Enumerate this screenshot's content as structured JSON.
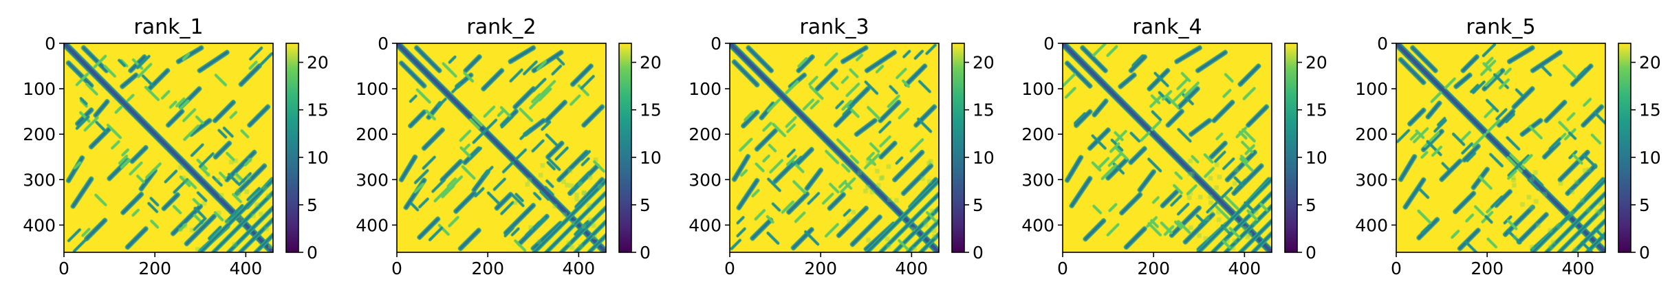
{
  "chart_data": [
    {
      "type": "heatmap",
      "title": "rank_1",
      "xlim": [
        0,
        460
      ],
      "ylim": [
        460,
        0
      ],
      "xticks": [
        0,
        200,
        400
      ],
      "yticks": [
        0,
        100,
        200,
        300,
        400
      ],
      "colorbar": {
        "vmin": 0,
        "vmax": 22,
        "ticks": [
          0,
          5,
          10,
          15,
          20
        ],
        "colormap": "viridis"
      },
      "seed": 11
    },
    {
      "type": "heatmap",
      "title": "rank_2",
      "xlim": [
        0,
        460
      ],
      "ylim": [
        460,
        0
      ],
      "xticks": [
        0,
        200,
        400
      ],
      "yticks": [
        0,
        100,
        200,
        300,
        400
      ],
      "colorbar": {
        "vmin": 0,
        "vmax": 22,
        "ticks": [
          0,
          5,
          10,
          15,
          20
        ],
        "colormap": "viridis"
      },
      "seed": 23
    },
    {
      "type": "heatmap",
      "title": "rank_3",
      "xlim": [
        0,
        460
      ],
      "ylim": [
        460,
        0
      ],
      "xticks": [
        0,
        200,
        400
      ],
      "yticks": [
        0,
        100,
        200,
        300,
        400
      ],
      "colorbar": {
        "vmin": 0,
        "vmax": 22,
        "ticks": [
          0,
          5,
          10,
          15,
          20
        ],
        "colormap": "viridis"
      },
      "seed": 37
    },
    {
      "type": "heatmap",
      "title": "rank_4",
      "xlim": [
        0,
        460
      ],
      "ylim": [
        460,
        0
      ],
      "xticks": [
        0,
        200,
        400
      ],
      "yticks": [
        0,
        100,
        200,
        300,
        400
      ],
      "colorbar": {
        "vmin": 0,
        "vmax": 22,
        "ticks": [
          0,
          5,
          10,
          15,
          20
        ],
        "colormap": "viridis"
      },
      "seed": 41
    },
    {
      "type": "heatmap",
      "title": "rank_5",
      "xlim": [
        0,
        460
      ],
      "ylim": [
        460,
        0
      ],
      "xticks": [
        0,
        200,
        400
      ],
      "yticks": [
        0,
        100,
        200,
        300,
        400
      ],
      "colorbar": {
        "vmin": 0,
        "vmax": 22,
        "ticks": [
          0,
          5,
          10,
          15,
          20
        ],
        "colormap": "viridis"
      },
      "seed": 53
    }
  ]
}
